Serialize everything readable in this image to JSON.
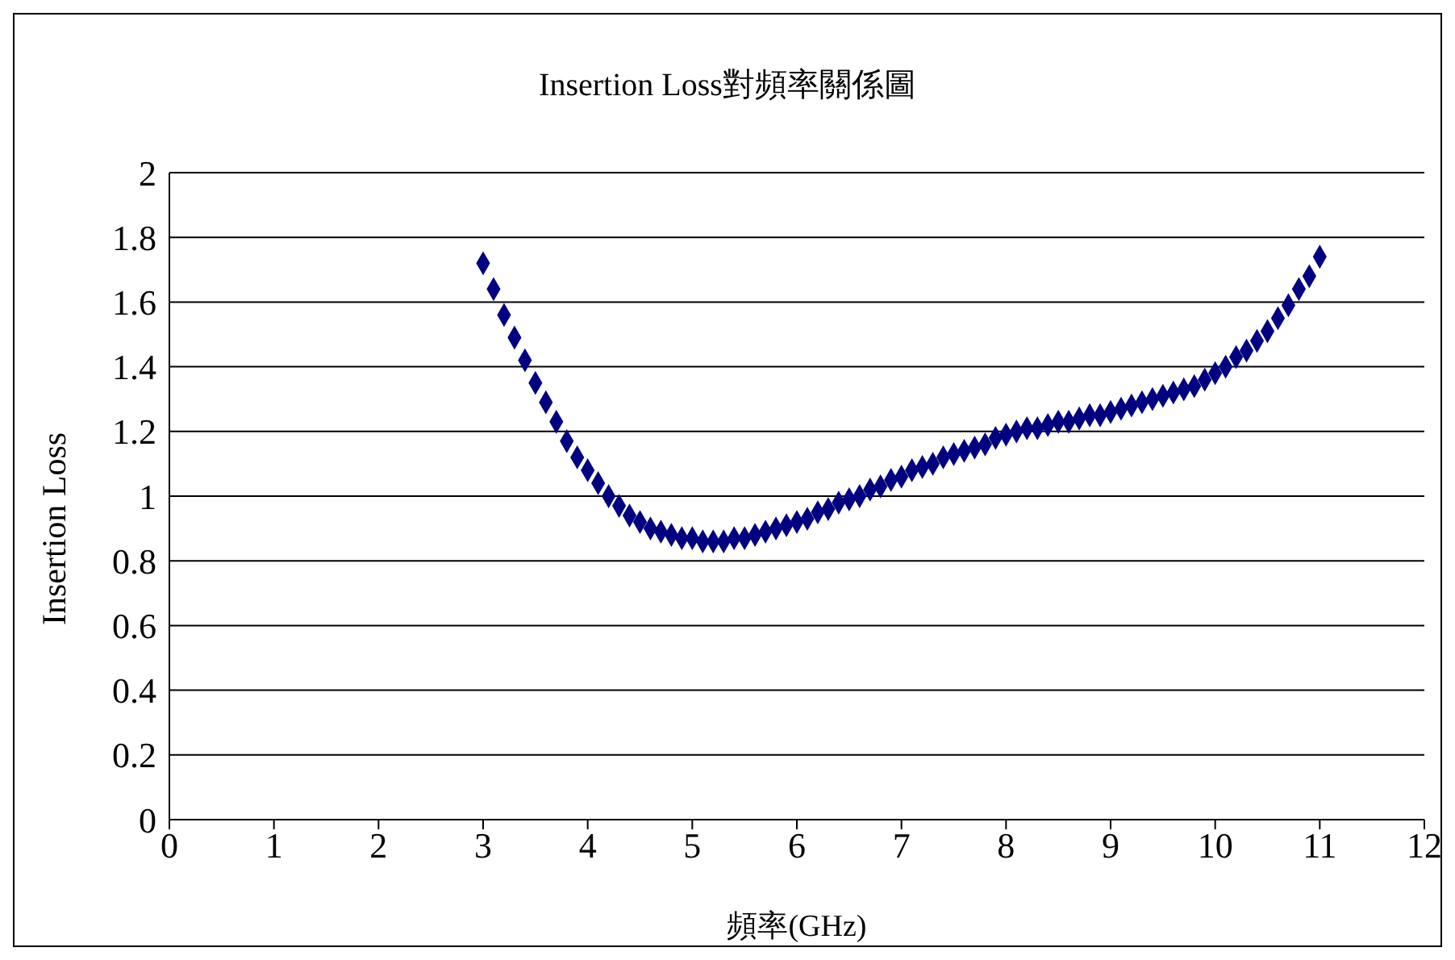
{
  "chart_data": {
    "type": "scatter",
    "title": "Insertion Loss對頻率關係圖",
    "xlabel": "頻率(GHz)",
    "ylabel": "Insertion Loss",
    "x": [
      3,
      3.1,
      3.2,
      3.3,
      3.4,
      3.5,
      3.6,
      3.7,
      3.8,
      3.9,
      4,
      4.1,
      4.2,
      4.3,
      4.4,
      4.5,
      4.6,
      4.7,
      4.8,
      4.9,
      5,
      5.1,
      5.2,
      5.3,
      5.4,
      5.5,
      5.6,
      5.7,
      5.8,
      5.9,
      6,
      6.1,
      6.2,
      6.3,
      6.4,
      6.5,
      6.6,
      6.7,
      6.8,
      6.9,
      7,
      7.1,
      7.2,
      7.3,
      7.4,
      7.5,
      7.6,
      7.7,
      7.8,
      7.9,
      8,
      8.1,
      8.2,
      8.3,
      8.4,
      8.5,
      8.6,
      8.7,
      8.8,
      8.9,
      9,
      9.1,
      9.2,
      9.3,
      9.4,
      9.5,
      9.6,
      9.7,
      9.8,
      9.9,
      10,
      10.1,
      10.2,
      10.3,
      10.4,
      10.5,
      10.6,
      10.7,
      10.8,
      10.9,
      11
    ],
    "series": [
      {
        "color": "#000080",
        "values": [
          1.72,
          1.64,
          1.56,
          1.49,
          1.42,
          1.35,
          1.29,
          1.23,
          1.17,
          1.12,
          1.08,
          1.04,
          1.0,
          0.97,
          0.94,
          0.92,
          0.9,
          0.89,
          0.88,
          0.87,
          0.87,
          0.86,
          0.86,
          0.86,
          0.87,
          0.87,
          0.88,
          0.89,
          0.9,
          0.91,
          0.92,
          0.93,
          0.95,
          0.96,
          0.98,
          0.99,
          1.0,
          1.02,
          1.03,
          1.05,
          1.06,
          1.08,
          1.09,
          1.1,
          1.12,
          1.13,
          1.14,
          1.15,
          1.16,
          1.18,
          1.19,
          1.2,
          1.21,
          1.21,
          1.22,
          1.23,
          1.23,
          1.24,
          1.25,
          1.25,
          1.26,
          1.27,
          1.28,
          1.29,
          1.3,
          1.31,
          1.32,
          1.33,
          1.34,
          1.36,
          1.38,
          1.4,
          1.43,
          1.45,
          1.48,
          1.51,
          1.55,
          1.59,
          1.64,
          1.68,
          1.74
        ]
      }
    ],
    "xlim": [
      0,
      12
    ],
    "xticks": [
      0,
      1,
      2,
      3,
      4,
      5,
      6,
      7,
      8,
      9,
      10,
      11,
      12
    ],
    "ylim": [
      0,
      2
    ],
    "yticks": [
      0,
      0.2,
      0.4,
      0.6,
      0.8,
      1,
      1.2,
      1.4,
      1.6,
      1.8,
      2
    ],
    "grid": "y",
    "marker": "diamond"
  }
}
